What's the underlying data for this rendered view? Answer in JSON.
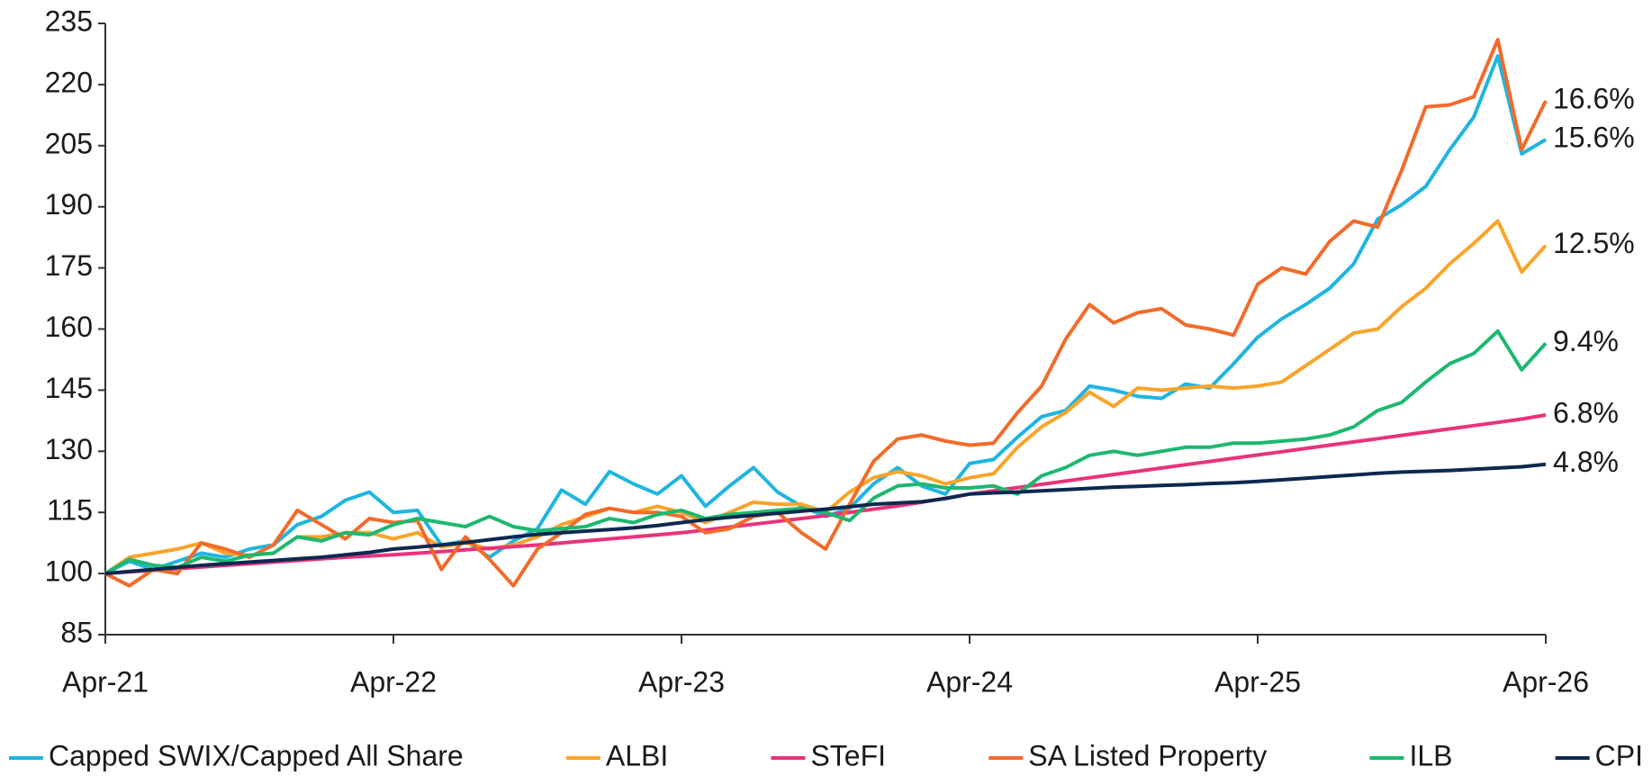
{
  "chart_data": {
    "type": "line",
    "categories": [
      "Apr-21",
      null,
      null,
      null,
      null,
      null,
      null,
      null,
      null,
      null,
      null,
      null,
      "Apr-22",
      null,
      null,
      null,
      null,
      null,
      null,
      null,
      null,
      null,
      null,
      null,
      "Apr-23",
      null,
      null,
      null,
      null,
      null,
      null,
      null,
      null,
      null,
      null,
      null,
      "Apr-24",
      null,
      null,
      null,
      null,
      null,
      null,
      null,
      null,
      null,
      null,
      null,
      "Apr-25",
      null,
      null,
      null,
      null,
      null,
      null,
      null,
      null,
      null,
      null,
      null,
      "Apr-26"
    ],
    "ylim": [
      85,
      235
    ],
    "yticks": [
      85,
      100,
      115,
      130,
      145,
      160,
      175,
      190,
      205,
      220,
      235
    ],
    "legend": "bottom",
    "series": [
      {
        "name": "Capped SWIX/Capped All Share",
        "color": "#1fb5e0",
        "annotation": "15.6%",
        "values": [
          100,
          103,
          101,
          103,
          105,
          104,
          106,
          107,
          112,
          114,
          118,
          120,
          115,
          115.5,
          107,
          108,
          104,
          108,
          111,
          120.5,
          117,
          125,
          122,
          119.5,
          124,
          116.5,
          121.5,
          126,
          120,
          116.5,
          114,
          116,
          122,
          126,
          121.5,
          119.5,
          127,
          128,
          133.5,
          138.5,
          140,
          146,
          145,
          143.5,
          143,
          146.5,
          145.5,
          151.5,
          158,
          162.5,
          166,
          170,
          176,
          187,
          190.5,
          195,
          204,
          212,
          227,
          203,
          206.5
        ]
      },
      {
        "name": "ALBI",
        "color": "#f9a42a",
        "annotation": "12.5%",
        "values": [
          100,
          104,
          105,
          106,
          107.5,
          105,
          104.5,
          105,
          109,
          109,
          110,
          110,
          108.5,
          110,
          106.5,
          107.5,
          106,
          107,
          109,
          112,
          114,
          116,
          115,
          116.5,
          115,
          112.5,
          115,
          117.5,
          117,
          117,
          115,
          120,
          123.5,
          125,
          124,
          122,
          123.5,
          124.5,
          131,
          136,
          139.5,
          144.5,
          141,
          145.5,
          145,
          145.5,
          146,
          145.5,
          146,
          147,
          151,
          155,
          159,
          160,
          165.5,
          170,
          176,
          181,
          186.5,
          174,
          180.5
        ]
      },
      {
        "name": "STeFI",
        "color": "#e8337a",
        "annotation": "6.8%",
        "values": [
          100,
          100.4,
          100.8,
          101.2,
          101.6,
          102,
          102.4,
          102.8,
          103.2,
          103.6,
          104,
          104.3,
          104.6,
          105,
          105.4,
          105.8,
          106.2,
          106.6,
          107,
          107.5,
          108,
          108.5,
          109,
          109.5,
          110,
          110.7,
          111.4,
          112.1,
          112.8,
          113.5,
          114.2,
          115,
          115.8,
          116.6,
          117.5,
          118.5,
          119.5,
          120.3,
          121.1,
          121.9,
          122.7,
          123.5,
          124.3,
          125.1,
          125.9,
          126.7,
          127.5,
          128.3,
          129.1,
          129.9,
          130.7,
          131.5,
          132.3,
          133.1,
          133.9,
          134.7,
          135.5,
          136.3,
          137.1,
          137.9,
          138.9
        ]
      },
      {
        "name": "SA Listed Property",
        "color": "#f26b2a",
        "annotation": "16.6%",
        "values": [
          100,
          97,
          101,
          100,
          107.5,
          106,
          104,
          107,
          115.5,
          112,
          108.5,
          113.5,
          112.5,
          113,
          101,
          109,
          103.5,
          97,
          106,
          110,
          114.5,
          116,
          115,
          115,
          114,
          110,
          111,
          114,
          115,
          110,
          106,
          117,
          127.5,
          133,
          134,
          132.5,
          131.5,
          132,
          139.5,
          146,
          157.5,
          166,
          161.5,
          164,
          165,
          161,
          160,
          158.5,
          171,
          175,
          173.5,
          181.5,
          186.5,
          185,
          199,
          214.5,
          215,
          217,
          231,
          204,
          216
        ]
      },
      {
        "name": "ILB",
        "color": "#1db870",
        "annotation": "9.4%",
        "values": [
          100,
          103.5,
          102,
          101.5,
          104,
          103,
          104.5,
          105,
          109,
          108,
          110,
          109.5,
          112,
          113.5,
          112.5,
          111.5,
          114,
          111.5,
          110.5,
          111,
          111.5,
          113.5,
          112.5,
          114.5,
          115.5,
          113.5,
          114.5,
          115,
          115.5,
          116,
          115,
          113,
          118.5,
          121.5,
          122,
          121,
          121,
          121.5,
          119.5,
          124,
          126,
          129,
          130,
          129,
          130,
          131,
          131,
          132,
          132,
          132.5,
          133,
          134,
          136,
          140,
          142,
          147,
          151.5,
          154,
          159.5,
          150,
          156.5
        ]
      },
      {
        "name": "CPI",
        "color": "#0c2851",
        "annotation": "4.8%",
        "values": [
          100,
          100.5,
          101,
          101.5,
          102,
          102.4,
          102.8,
          103.2,
          103.6,
          104,
          104.6,
          105.2,
          106,
          106.5,
          107,
          107.6,
          108.3,
          109,
          109.6,
          110,
          110.4,
          110.8,
          111.2,
          111.8,
          112.5,
          113.2,
          113.8,
          114.3,
          114.8,
          115.3,
          115.8,
          116.4,
          117,
          117.3,
          117.6,
          118.4,
          119.5,
          119.8,
          120,
          120.3,
          120.6,
          120.9,
          121.2,
          121.4,
          121.6,
          121.8,
          122.1,
          122.3,
          122.6,
          123,
          123.4,
          123.8,
          124.2,
          124.6,
          124.9,
          125.1,
          125.3,
          125.6,
          125.9,
          126.2,
          126.8
        ]
      }
    ]
  }
}
